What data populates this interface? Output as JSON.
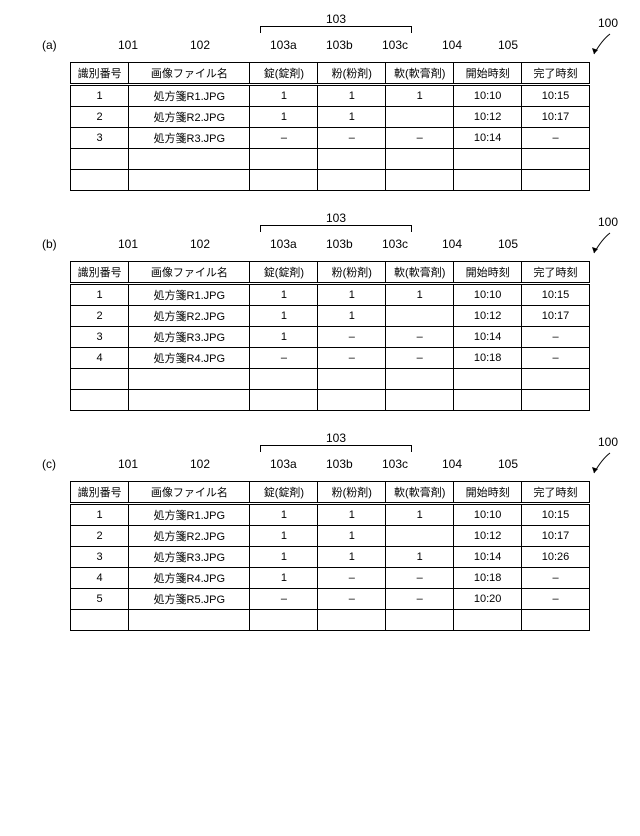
{
  "common": {
    "headers": {
      "id": "識別番号",
      "filename": "画像ファイル名",
      "tablet": "錠(錠剤)",
      "powder": "粉(粉剤)",
      "ointment": "軟(軟膏剤)",
      "start": "開始時刻",
      "end": "完了時刻"
    },
    "refs": {
      "r101": "101",
      "r102": "102",
      "r103": "103",
      "r103a": "103a",
      "r103b": "103b",
      "r103c": "103c",
      "r104": "104",
      "r105": "105",
      "r100": "100"
    }
  },
  "panels": [
    {
      "tag": "(a)",
      "blank_rows": 2,
      "rows": [
        {
          "id": "1",
          "file": "処方箋R1.JPG",
          "tab": "1",
          "pow": "1",
          "oin": "1",
          "start": "10:10",
          "end": "10:15"
        },
        {
          "id": "2",
          "file": "処方箋R2.JPG",
          "tab": "1",
          "pow": "1",
          "oin": "",
          "start": "10:12",
          "end": "10:17"
        },
        {
          "id": "3",
          "file": "処方箋R3.JPG",
          "tab": "–",
          "pow": "–",
          "oin": "–",
          "start": "10:14",
          "end": "–"
        }
      ]
    },
    {
      "tag": "(b)",
      "blank_rows": 2,
      "rows": [
        {
          "id": "1",
          "file": "処方箋R1.JPG",
          "tab": "1",
          "pow": "1",
          "oin": "1",
          "start": "10:10",
          "end": "10:15"
        },
        {
          "id": "2",
          "file": "処方箋R2.JPG",
          "tab": "1",
          "pow": "1",
          "oin": "",
          "start": "10:12",
          "end": "10:17"
        },
        {
          "id": "3",
          "file": "処方箋R3.JPG",
          "tab": "1",
          "pow": "–",
          "oin": "–",
          "start": "10:14",
          "end": "–"
        },
        {
          "id": "4",
          "file": "処方箋R4.JPG",
          "tab": "–",
          "pow": "–",
          "oin": "–",
          "start": "10:18",
          "end": "–"
        }
      ]
    },
    {
      "tag": "(c)",
      "blank_rows": 1,
      "rows": [
        {
          "id": "1",
          "file": "処方箋R1.JPG",
          "tab": "1",
          "pow": "1",
          "oin": "1",
          "start": "10:10",
          "end": "10:15"
        },
        {
          "id": "2",
          "file": "処方箋R2.JPG",
          "tab": "1",
          "pow": "1",
          "oin": "",
          "start": "10:12",
          "end": "10:17"
        },
        {
          "id": "3",
          "file": "処方箋R3.JPG",
          "tab": "1",
          "pow": "1",
          "oin": "1",
          "start": "10:14",
          "end": "10:26"
        },
        {
          "id": "4",
          "file": "処方箋R4.JPG",
          "tab": "1",
          "pow": "–",
          "oin": "–",
          "start": "10:18",
          "end": "–"
        },
        {
          "id": "5",
          "file": "処方箋R5.JPG",
          "tab": "–",
          "pow": "–",
          "oin": "–",
          "start": "10:20",
          "end": "–"
        }
      ]
    }
  ]
}
